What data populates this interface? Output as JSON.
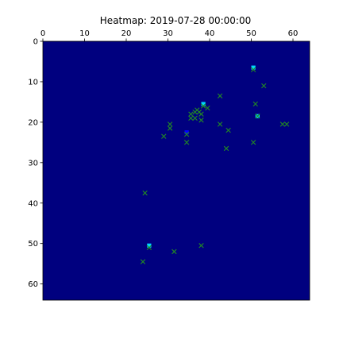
{
  "chart_data": {
    "type": "heatmap",
    "title": "Heatmap: 2019-07-28 00:00:00",
    "xlabel": "",
    "ylabel": "",
    "xlim": [
      0,
      64
    ],
    "ylim": [
      64,
      0
    ],
    "x_ticks": [
      0,
      10,
      20,
      30,
      40,
      50,
      60
    ],
    "y_ticks": [
      0,
      10,
      20,
      30,
      40,
      50,
      60
    ],
    "x_tick_position": "top",
    "grid": false,
    "colors": {
      "background": "#00007f",
      "marker": "#228b22",
      "cell_cyan": "#00d6ff",
      "cell_blue": "#0000ff"
    },
    "cells": [
      {
        "x": 50.5,
        "y": 6.5,
        "value": "high"
      },
      {
        "x": 38.5,
        "y": 15.5,
        "value": "high"
      },
      {
        "x": 51.5,
        "y": 18.5,
        "value": "high"
      },
      {
        "x": 34.5,
        "y": 22.5,
        "value": "medium"
      },
      {
        "x": 25.5,
        "y": 50.5,
        "value": "high"
      }
    ],
    "markers": [
      {
        "x": 50.5,
        "y": 7.0
      },
      {
        "x": 53.0,
        "y": 11.0
      },
      {
        "x": 42.5,
        "y": 13.5
      },
      {
        "x": 51.0,
        "y": 15.5
      },
      {
        "x": 38.5,
        "y": 16.0
      },
      {
        "x": 39.5,
        "y": 16.5
      },
      {
        "x": 37.0,
        "y": 17.0
      },
      {
        "x": 36.5,
        "y": 17.5
      },
      {
        "x": 37.5,
        "y": 17.5
      },
      {
        "x": 35.5,
        "y": 18.0
      },
      {
        "x": 38.0,
        "y": 18.0
      },
      {
        "x": 35.5,
        "y": 19.0
      },
      {
        "x": 36.5,
        "y": 19.0
      },
      {
        "x": 51.5,
        "y": 18.5
      },
      {
        "x": 38.0,
        "y": 19.5
      },
      {
        "x": 30.5,
        "y": 20.5
      },
      {
        "x": 42.5,
        "y": 20.5
      },
      {
        "x": 57.5,
        "y": 20.5
      },
      {
        "x": 58.5,
        "y": 20.5
      },
      {
        "x": 30.5,
        "y": 21.5
      },
      {
        "x": 44.5,
        "y": 22.0
      },
      {
        "x": 34.5,
        "y": 23.0
      },
      {
        "x": 29.0,
        "y": 23.5
      },
      {
        "x": 34.5,
        "y": 25.0
      },
      {
        "x": 50.5,
        "y": 25.0
      },
      {
        "x": 44.0,
        "y": 26.5
      },
      {
        "x": 24.5,
        "y": 37.5
      },
      {
        "x": 25.5,
        "y": 51.0
      },
      {
        "x": 38.0,
        "y": 50.5
      },
      {
        "x": 31.5,
        "y": 52.0
      },
      {
        "x": 24.0,
        "y": 54.5
      }
    ]
  }
}
